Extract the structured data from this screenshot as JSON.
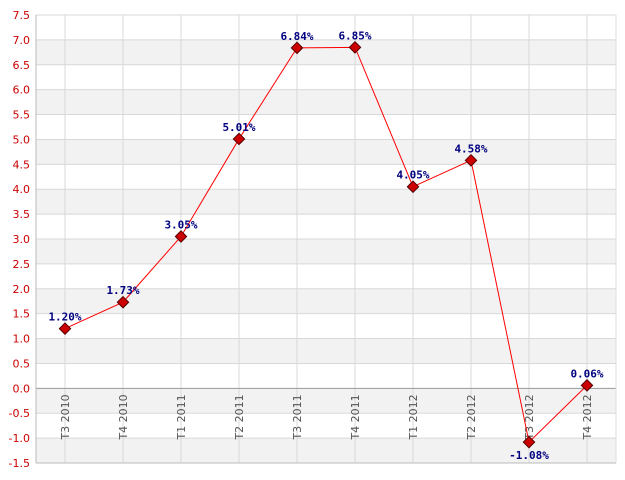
{
  "chart_data": {
    "type": "line",
    "categories": [
      "T3 2010",
      "T4 2010",
      "T1 2011",
      "T2 2011",
      "T3 2011",
      "T4 2011",
      "T1 2012",
      "T2 2012",
      "T3 2012",
      "T4 2012"
    ],
    "series": [
      {
        "values": [
          1.2,
          1.73,
          3.05,
          5.01,
          6.84,
          6.85,
          4.05,
          4.58,
          -1.08,
          0.06
        ],
        "labels": [
          "1.20%",
          "1.73%",
          "3.05%",
          "5.01%",
          "6.84%",
          "6.85%",
          "4.05%",
          "4.58%",
          "-1.08%",
          "0.06%"
        ],
        "color": "#ff0000",
        "marker_color": "#cc0000"
      }
    ],
    "y_ticks": [
      "-1.5",
      "-1.0",
      "-0.5",
      "0.0",
      "0.5",
      "1.0",
      "1.5",
      "2.0",
      "2.5",
      "3.0",
      "3.5",
      "4.0",
      "4.5",
      "5.0",
      "5.5",
      "6.0",
      "6.5",
      "7.0",
      "7.5"
    ],
    "ylim": [
      -1.5,
      7.5
    ],
    "grid": true,
    "legend": false,
    "colors": {
      "ytick": "#cc0000",
      "xtick": "#555555",
      "data_label": "#000080",
      "band": "#f2f2f2",
      "grid": "#d8d8d8",
      "zero_line": "#999999"
    }
  }
}
